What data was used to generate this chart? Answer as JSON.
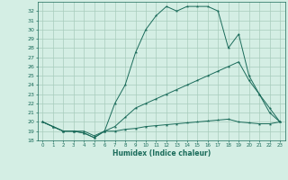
{
  "xlabel": "Humidex (Indice chaleur)",
  "bg_color": "#d4eee4",
  "grid_color": "#a8ccbc",
  "line_color": "#1a6b5a",
  "xlim": [
    -0.5,
    23.5
  ],
  "ylim": [
    18,
    33
  ],
  "xticks": [
    0,
    1,
    2,
    3,
    4,
    5,
    6,
    7,
    8,
    9,
    10,
    11,
    12,
    13,
    14,
    15,
    16,
    17,
    18,
    19,
    20,
    21,
    22,
    23
  ],
  "yticks": [
    18,
    19,
    20,
    21,
    22,
    23,
    24,
    25,
    26,
    27,
    28,
    29,
    30,
    31,
    32
  ],
  "line_flat": {
    "x": [
      0,
      1,
      2,
      3,
      4,
      5,
      6,
      7,
      8,
      9,
      10,
      11,
      12,
      13,
      14,
      15,
      16,
      17,
      18,
      19,
      20,
      21,
      22,
      23
    ],
    "y": [
      20,
      19.5,
      19,
      19,
      19,
      18.5,
      19,
      19,
      19.2,
      19.3,
      19.5,
      19.6,
      19.7,
      19.8,
      19.9,
      20,
      20.1,
      20.2,
      20.3,
      20,
      19.9,
      19.8,
      19.8,
      20
    ]
  },
  "line_diag": {
    "x": [
      0,
      1,
      2,
      3,
      4,
      5,
      6,
      7,
      8,
      9,
      10,
      11,
      12,
      13,
      14,
      15,
      16,
      17,
      18,
      19,
      20,
      21,
      22,
      23
    ],
    "y": [
      20,
      19.5,
      19,
      19,
      18.8,
      18.3,
      19,
      19.5,
      20.5,
      21.5,
      22,
      22.5,
      23,
      23.5,
      24,
      24.5,
      25,
      25.5,
      26,
      26.5,
      24.5,
      23,
      21.5,
      20
    ]
  },
  "line_peak": {
    "x": [
      0,
      1,
      2,
      3,
      4,
      5,
      6,
      7,
      8,
      9,
      10,
      11,
      12,
      13,
      14,
      15,
      16,
      17,
      18,
      19,
      20,
      21,
      22,
      23
    ],
    "y": [
      20,
      19.5,
      19,
      19,
      18.8,
      18.3,
      19,
      22,
      24,
      27.5,
      30,
      31.5,
      32.5,
      32,
      32.5,
      32.5,
      32.5,
      32,
      28,
      29.5,
      25,
      23,
      21,
      20
    ]
  }
}
